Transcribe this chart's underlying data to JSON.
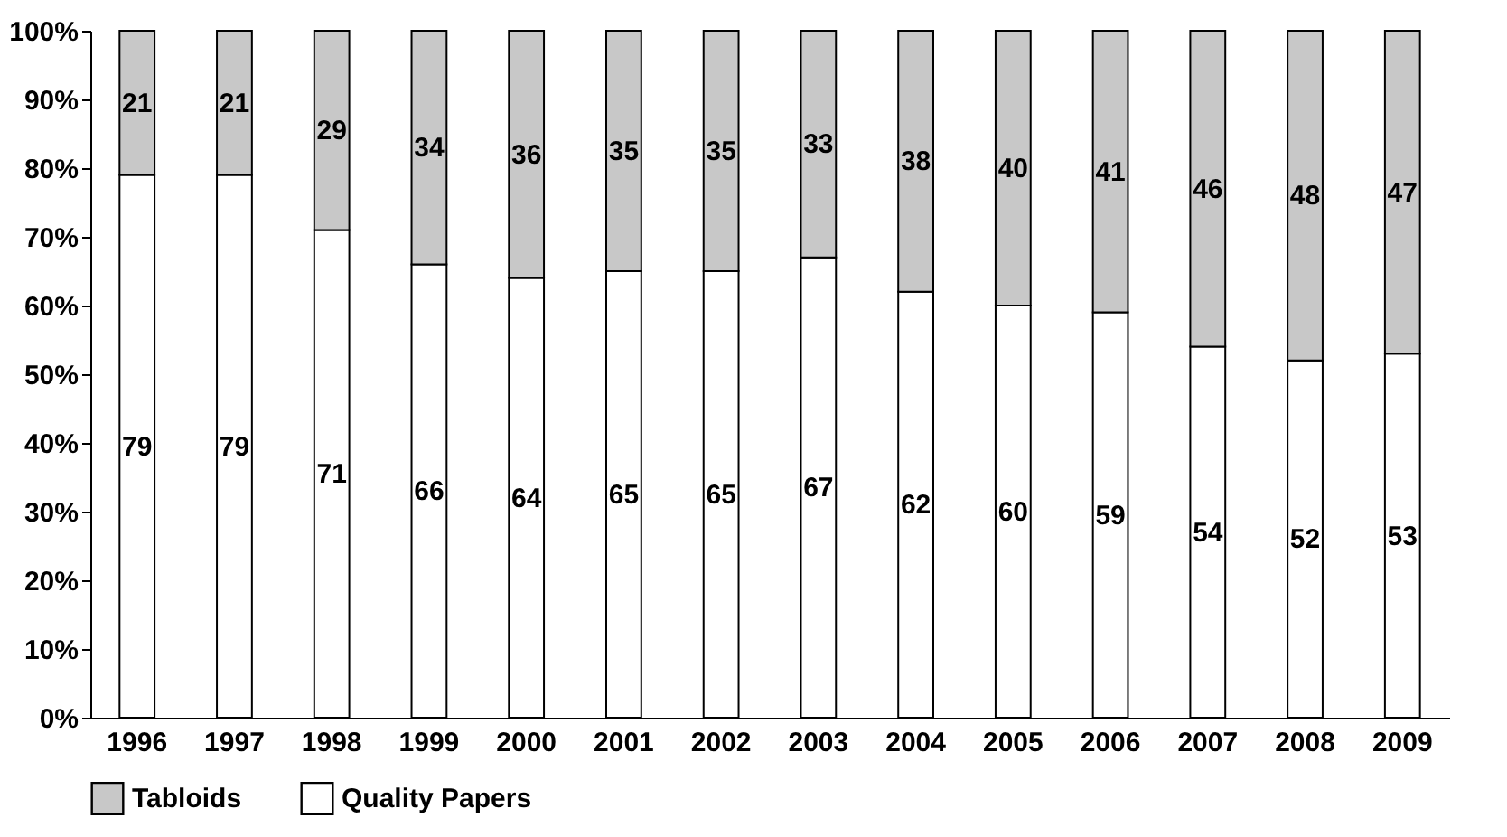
{
  "chart_data": {
    "type": "bar",
    "stacked": true,
    "categories": [
      "1996",
      "1997",
      "1998",
      "1999",
      "2000",
      "2001",
      "2002",
      "2003",
      "2004",
      "2005",
      "2006",
      "2007",
      "2008",
      "2009"
    ],
    "series": [
      {
        "name": "Quality Papers",
        "color": "#ffffff",
        "values": [
          79,
          79,
          71,
          66,
          64,
          65,
          65,
          67,
          62,
          60,
          59,
          54,
          52,
          53
        ]
      },
      {
        "name": "Tabloids",
        "color": "#c8c8c8",
        "values": [
          21,
          21,
          29,
          34,
          36,
          35,
          35,
          33,
          38,
          40,
          41,
          46,
          48,
          47
        ]
      }
    ],
    "ylim": [
      0,
      100
    ],
    "yticks": [
      {
        "value": 0,
        "label": "0%"
      },
      {
        "value": 10,
        "label": "10%"
      },
      {
        "value": 20,
        "label": "20%"
      },
      {
        "value": 30,
        "label": "30%"
      },
      {
        "value": 40,
        "label": "40%"
      },
      {
        "value": 50,
        "label": "50%"
      },
      {
        "value": 60,
        "label": "60%"
      },
      {
        "value": 70,
        "label": "70%"
      },
      {
        "value": 80,
        "label": "80%"
      },
      {
        "value": 90,
        "label": "90%"
      },
      {
        "value": 100,
        "label": "100%"
      }
    ],
    "data_labels": true,
    "legend": "bottom left",
    "grid": false
  }
}
